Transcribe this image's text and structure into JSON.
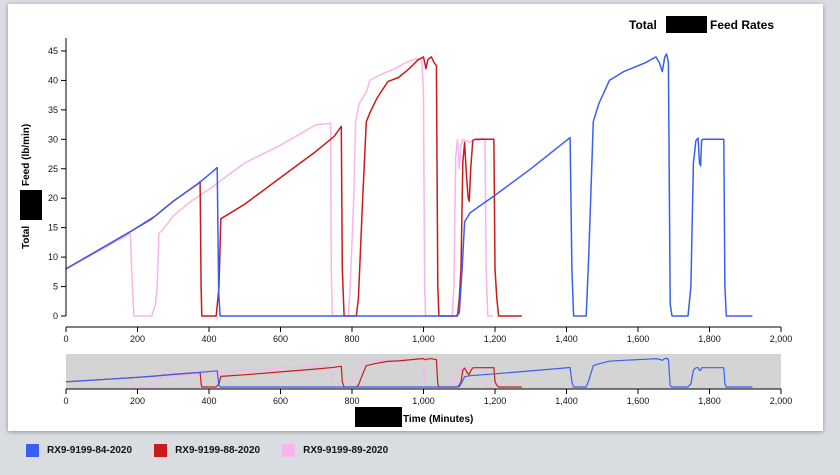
{
  "chart_data": {
    "type": "line",
    "title_prefix": "Total",
    "title_suffix": "Feed Rates",
    "ylabel_prefix": "Total",
    "ylabel_suffix": "Feed (lb/min)",
    "xlabel": "Time (Minutes)",
    "xlim": [
      0,
      2000
    ],
    "ylim": [
      0,
      47
    ],
    "x_ticks": [
      0,
      200,
      400,
      600,
      800,
      1000,
      1200,
      1400,
      1600,
      1800,
      2000
    ],
    "x_tick_labels": [
      "0",
      "200",
      "400",
      "600",
      "800",
      "1,000",
      "1,200",
      "1,400",
      "1,600",
      "1,800",
      "2,000"
    ],
    "y_ticks": [
      0,
      5,
      10,
      15,
      20,
      25,
      30,
      35,
      40,
      45
    ],
    "y_tick_labels": [
      "0",
      "5",
      "10",
      "15",
      "20",
      "25",
      "30",
      "35",
      "40",
      "45"
    ],
    "grid": false,
    "legend_position": "bottom-left",
    "overview_brush": true,
    "series": [
      {
        "name": "RX9-9199-84-2020",
        "color": "#3b5ef0",
        "points": [
          [
            0,
            8
          ],
          [
            185,
            14.5
          ],
          [
            250,
            17
          ],
          [
            300,
            19.5
          ],
          [
            370,
            22.5
          ],
          [
            380,
            23
          ],
          [
            410,
            24.5
          ],
          [
            423,
            25.2
          ],
          [
            427,
            4
          ],
          [
            431,
            0
          ],
          [
            1090,
            0
          ],
          [
            1100,
            0.5
          ],
          [
            1108,
            8
          ],
          [
            1115,
            16
          ],
          [
            1130,
            17.5
          ],
          [
            1200,
            20.5
          ],
          [
            1300,
            25
          ],
          [
            1410,
            30.3
          ],
          [
            1415,
            8
          ],
          [
            1420,
            0
          ],
          [
            1455,
            0
          ],
          [
            1462,
            10
          ],
          [
            1475,
            33
          ],
          [
            1490,
            36
          ],
          [
            1520,
            40
          ],
          [
            1560,
            41.5
          ],
          [
            1620,
            43
          ],
          [
            1650,
            44
          ],
          [
            1660,
            43
          ],
          [
            1668,
            41.5
          ],
          [
            1675,
            44
          ],
          [
            1680,
            44.5
          ],
          [
            1685,
            43
          ],
          [
            1690,
            2
          ],
          [
            1695,
            0
          ],
          [
            1740,
            0
          ],
          [
            1748,
            5
          ],
          [
            1755,
            26
          ],
          [
            1762,
            29.8
          ],
          [
            1768,
            30.2
          ],
          [
            1772,
            26
          ],
          [
            1775,
            25.5
          ],
          [
            1778,
            29.8
          ],
          [
            1782,
            30
          ],
          [
            1795,
            30
          ],
          [
            1840,
            30
          ],
          [
            1843,
            5
          ],
          [
            1847,
            0
          ],
          [
            1920,
            0
          ]
        ]
      },
      {
        "name": "RX9-9199-88-2020",
        "color": "#cc1a1a",
        "points": [
          [
            0,
            8
          ],
          [
            185,
            14.5
          ],
          [
            240,
            16.5
          ],
          [
            300,
            19.5
          ],
          [
            370,
            22.5
          ],
          [
            375,
            22.8
          ],
          [
            378,
            5
          ],
          [
            380,
            0
          ],
          [
            420,
            0
          ],
          [
            428,
            5
          ],
          [
            433,
            16.5
          ],
          [
            500,
            19
          ],
          [
            600,
            23.5
          ],
          [
            700,
            28
          ],
          [
            750,
            30.5
          ],
          [
            770,
            32.2
          ],
          [
            773,
            8
          ],
          [
            778,
            0
          ],
          [
            812,
            0
          ],
          [
            818,
            3
          ],
          [
            830,
            20
          ],
          [
            840,
            33
          ],
          [
            850,
            34.5
          ],
          [
            870,
            37
          ],
          [
            900,
            39.8
          ],
          [
            930,
            40.5
          ],
          [
            960,
            42
          ],
          [
            985,
            43.5
          ],
          [
            1000,
            44
          ],
          [
            1007,
            42
          ],
          [
            1012,
            43.5
          ],
          [
            1017,
            43.8
          ],
          [
            1022,
            44
          ],
          [
            1030,
            43
          ],
          [
            1036,
            42.5
          ],
          [
            1040,
            5
          ],
          [
            1043,
            0
          ],
          [
            1095,
            0
          ],
          [
            1100,
            3
          ],
          [
            1105,
            8
          ],
          [
            1110,
            26
          ],
          [
            1115,
            29.5
          ],
          [
            1120,
            24
          ],
          [
            1125,
            20
          ],
          [
            1128,
            19.5
          ],
          [
            1132,
            25
          ],
          [
            1138,
            29.8
          ],
          [
            1145,
            30
          ],
          [
            1165,
            30
          ],
          [
            1190,
            30
          ],
          [
            1197,
            30
          ],
          [
            1200,
            8
          ],
          [
            1205,
            3
          ],
          [
            1210,
            0
          ],
          [
            1275,
            0
          ]
        ]
      },
      {
        "name": "RX9-9199-89-2020",
        "color": "#f7b5ec",
        "points": [
          [
            0,
            8
          ],
          [
            180,
            14
          ],
          [
            185,
            6
          ],
          [
            190,
            0
          ],
          [
            240,
            0
          ],
          [
            250,
            2
          ],
          [
            255,
            5
          ],
          [
            260,
            14
          ],
          [
            275,
            15
          ],
          [
            300,
            17
          ],
          [
            350,
            19.5
          ],
          [
            400,
            21.5
          ],
          [
            500,
            26
          ],
          [
            600,
            29
          ],
          [
            700,
            32.5
          ],
          [
            740,
            32.7
          ],
          [
            742,
            8
          ],
          [
            745,
            0
          ],
          [
            790,
            0
          ],
          [
            795,
            5
          ],
          [
            805,
            20
          ],
          [
            810,
            33
          ],
          [
            820,
            36
          ],
          [
            840,
            38
          ],
          [
            850,
            40
          ],
          [
            880,
            41
          ],
          [
            920,
            42
          ],
          [
            950,
            43
          ],
          [
            970,
            43.5
          ],
          [
            995,
            43.8
          ],
          [
            1000,
            38
          ],
          [
            1003,
            5
          ],
          [
            1006,
            0
          ],
          [
            1080,
            0
          ],
          [
            1085,
            5
          ],
          [
            1090,
            27
          ],
          [
            1095,
            30
          ],
          [
            1100,
            25
          ],
          [
            1105,
            29
          ],
          [
            1110,
            30
          ],
          [
            1130,
            29.5
          ],
          [
            1140,
            30
          ],
          [
            1155,
            29.8
          ],
          [
            1165,
            30.2
          ],
          [
            1172,
            30
          ],
          [
            1175,
            8
          ],
          [
            1180,
            0
          ],
          [
            1195,
            0
          ]
        ]
      }
    ]
  },
  "legend": {
    "items": [
      {
        "label": "RX9-9199-84-2020",
        "color": "#3b5ef0"
      },
      {
        "label": "RX9-9199-88-2020",
        "color": "#cc1a1a"
      },
      {
        "label": "RX9-9199-89-2020",
        "color": "#f7b5ec"
      }
    ]
  },
  "overview": {
    "background": "#d4d4d4"
  }
}
